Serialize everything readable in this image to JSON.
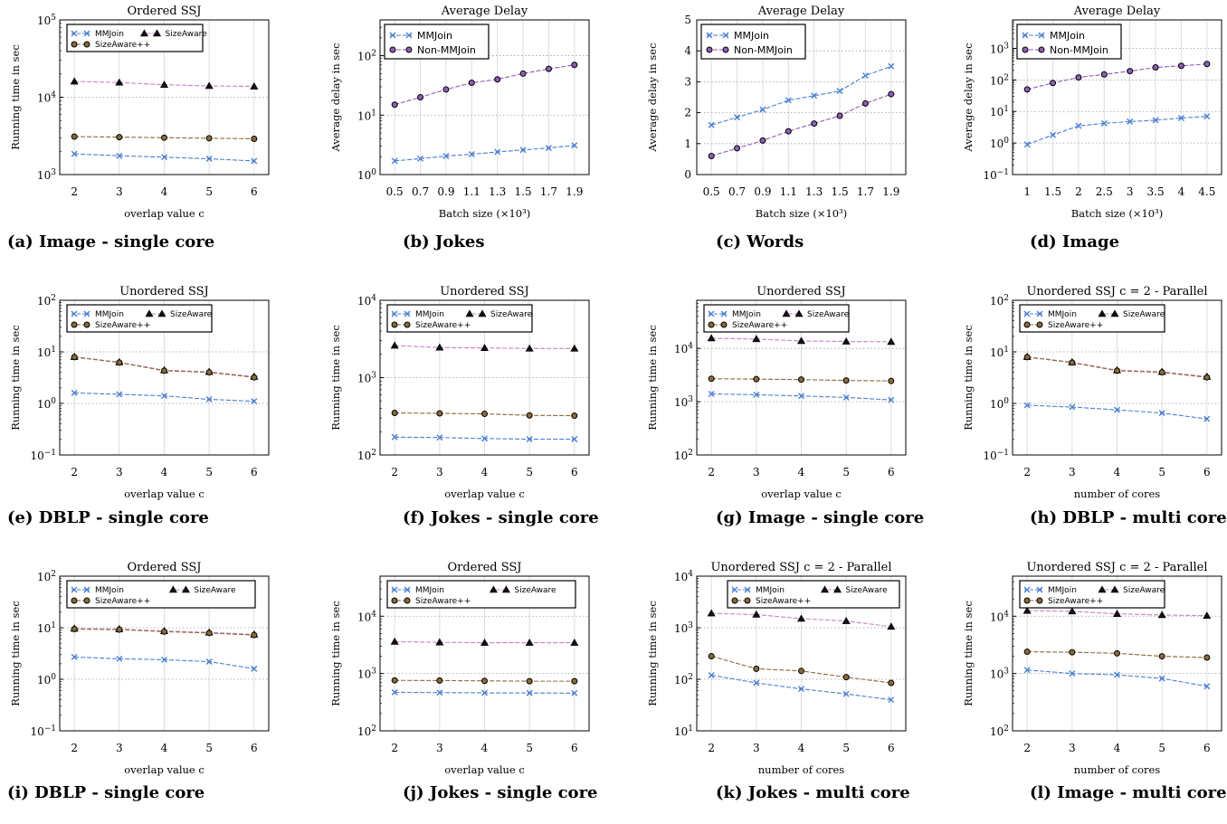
{
  "colors": {
    "mmjoin": "#4a7fd0",
    "sizeaware": "#cc7fcc",
    "sizeawarepp": "#8a6a3a",
    "nonmmjoin": "#8e5fb4"
  },
  "chart_data": [
    {
      "type": "line",
      "title": "Ordered SSJ",
      "xlabel": "overlap value c",
      "ylabel": "Running time in sec",
      "yscale": "log",
      "ylim": [
        1000,
        100000
      ],
      "x": [
        2,
        3,
        4,
        5,
        6
      ],
      "xticks": [
        "2",
        "3",
        "4",
        "5",
        "6"
      ],
      "yticks": [
        {
          "v": 1000,
          "m": "10",
          "e": "3"
        },
        {
          "v": 10000,
          "m": "10",
          "e": "4"
        },
        {
          "v": 100000,
          "m": "10",
          "e": "5"
        }
      ],
      "legend": "grid3",
      "legend_entries": [
        "MMJoin",
        "SizeAware",
        "SizeAware++"
      ],
      "series": [
        {
          "name": "MMJoin",
          "values": [
            1850,
            1750,
            1680,
            1600,
            1500
          ]
        },
        {
          "name": "SizeAware",
          "values": [
            16000,
            15500,
            14500,
            14000,
            13800
          ]
        },
        {
          "name": "SizeAware++",
          "values": [
            3100,
            3050,
            3000,
            2950,
            2900
          ]
        }
      ],
      "caption": "(a) Image - single core"
    },
    {
      "type": "line",
      "title": "Average Delay",
      "xlabel": "Batch size (×10³)",
      "ylabel": "Average delay in sec",
      "yscale": "log",
      "ylim": [
        1,
        400
      ],
      "x": [
        0.5,
        0.7,
        0.9,
        1.1,
        1.3,
        1.5,
        1.7,
        1.9
      ],
      "xticks": [
        "0.5",
        "0.7",
        "0.9",
        "1.1",
        "1.3",
        "1.5",
        "1.7",
        "1.9"
      ],
      "yticks": [
        {
          "v": 1,
          "m": "10",
          "e": "0"
        },
        {
          "v": 10,
          "m": "10",
          "e": "1"
        },
        {
          "v": 100,
          "m": "10",
          "e": "2"
        }
      ],
      "legend": "stack",
      "legend_entries": [
        "MMJoin",
        "Non-MMJoin"
      ],
      "series": [
        {
          "name": "MMJoin",
          "values": [
            1.7,
            1.85,
            2.05,
            2.2,
            2.4,
            2.6,
            2.8,
            3.1
          ]
        },
        {
          "name": "Non-MMJoin",
          "values": [
            15,
            20,
            27,
            35,
            40,
            50,
            60,
            70
          ]
        }
      ],
      "caption": "(b) Jokes"
    },
    {
      "type": "line",
      "title": "Average Delay",
      "xlabel": "Batch size (×10³)",
      "ylabel": "Average delay in sec",
      "yscale": "linear",
      "ylim": [
        0,
        5
      ],
      "x": [
        0.5,
        0.7,
        0.9,
        1.1,
        1.3,
        1.5,
        1.7,
        1.9
      ],
      "xticks": [
        "0.5",
        "0.7",
        "0.9",
        "1.1",
        "1.3",
        "1.5",
        "1.7",
        "1.9"
      ],
      "yticks": [
        {
          "v": 0,
          "t": "0"
        },
        {
          "v": 1,
          "t": "1"
        },
        {
          "v": 2,
          "t": "2"
        },
        {
          "v": 3,
          "t": "3"
        },
        {
          "v": 4,
          "t": "4"
        },
        {
          "v": 5,
          "t": "5"
        }
      ],
      "legend": "stack",
      "legend_entries": [
        "MMJoin",
        "Non-MMJoin"
      ],
      "series": [
        {
          "name": "MMJoin",
          "values": [
            1.6,
            1.85,
            2.1,
            2.4,
            2.55,
            2.7,
            3.2,
            3.5
          ]
        },
        {
          "name": "Non-MMJoin",
          "values": [
            0.6,
            0.85,
            1.1,
            1.4,
            1.65,
            1.9,
            2.3,
            2.6
          ]
        }
      ],
      "caption": "(c) Words"
    },
    {
      "type": "line",
      "title": "Average Delay",
      "xlabel": "Batch size (×10³)",
      "ylabel": "Average delay in sec",
      "yscale": "log",
      "ylim": [
        0.1,
        8000
      ],
      "x": [
        1,
        1.5,
        2,
        2.5,
        3,
        3.5,
        4,
        4.5
      ],
      "xticks": [
        "1",
        "1.5",
        "2",
        "2.5",
        "3",
        "3.5",
        "4",
        "4.5"
      ],
      "yticks": [
        {
          "v": 0.1,
          "m": "10",
          "e": "−1"
        },
        {
          "v": 1,
          "m": "10",
          "e": "0"
        },
        {
          "v": 10,
          "m": "10",
          "e": "1"
        },
        {
          "v": 100,
          "m": "10",
          "e": "2"
        },
        {
          "v": 1000,
          "m": "10",
          "e": "3"
        }
      ],
      "legend": "stack",
      "legend_entries": [
        "MMJoin",
        "Non-MMJoin"
      ],
      "series": [
        {
          "name": "MMJoin",
          "values": [
            0.9,
            1.8,
            3.5,
            4.2,
            4.8,
            5.3,
            6.2,
            7
          ]
        },
        {
          "name": "Non-MMJoin",
          "values": [
            50,
            80,
            120,
            150,
            190,
            250,
            280,
            320
          ]
        }
      ],
      "caption": "(d) Image"
    },
    {
      "type": "line",
      "title": "Unordered SSJ",
      "xlabel": "overlap value c",
      "ylabel": "Running time in sec",
      "yscale": "log",
      "ylim": [
        0.1,
        100
      ],
      "x": [
        2,
        3,
        4,
        5,
        6
      ],
      "xticks": [
        "2",
        "3",
        "4",
        "5",
        "6"
      ],
      "yticks": [
        {
          "v": 0.1,
          "m": "10",
          "e": "−1"
        },
        {
          "v": 1,
          "m": "10",
          "e": "0"
        },
        {
          "v": 10,
          "m": "10",
          "e": "1"
        },
        {
          "v": 100,
          "m": "10",
          "e": "2"
        }
      ],
      "legend": "grid3",
      "legend_entries": [
        "MMJoin",
        "SizeAware",
        "SizeAware++"
      ],
      "series": [
        {
          "name": "MMJoin",
          "values": [
            1.6,
            1.5,
            1.4,
            1.2,
            1.1
          ]
        },
        {
          "name": "SizeAware",
          "values": [
            8,
            6.3,
            4.4,
            4.1,
            3.3
          ]
        },
        {
          "name": "SizeAware++",
          "values": [
            7.9,
            6.2,
            4.3,
            4,
            3.2
          ]
        }
      ],
      "caption": "(e) DBLP - single core"
    },
    {
      "type": "line",
      "title": "Unordered SSJ",
      "xlabel": "overlap value c",
      "ylabel": "Running time in sec",
      "yscale": "log",
      "ylim": [
        100,
        10000
      ],
      "x": [
        2,
        3,
        4,
        5,
        6
      ],
      "xticks": [
        "2",
        "3",
        "4",
        "5",
        "6"
      ],
      "yticks": [
        {
          "v": 100,
          "m": "10",
          "e": "2"
        },
        {
          "v": 1000,
          "m": "10",
          "e": "3"
        },
        {
          "v": 10000,
          "m": "10",
          "e": "4"
        }
      ],
      "legend": "grid3",
      "legend_entries": [
        "MMJoin",
        "SizeAware",
        "SizeAware++"
      ],
      "series": [
        {
          "name": "MMJoin",
          "values": [
            170,
            168,
            163,
            160,
            160
          ]
        },
        {
          "name": "SizeAware",
          "values": [
            2600,
            2450,
            2420,
            2380,
            2380
          ]
        },
        {
          "name": "SizeAware++",
          "values": [
            350,
            345,
            340,
            325,
            322
          ]
        }
      ],
      "caption": "(f) Jokes - single core"
    },
    {
      "type": "line",
      "title": "Unordered SSJ",
      "xlabel": "overlap value c",
      "ylabel": "Running time in sec",
      "yscale": "log",
      "ylim": [
        100,
        80000
      ],
      "x": [
        2,
        3,
        4,
        5,
        6
      ],
      "xticks": [
        "2",
        "3",
        "4",
        "5",
        "6"
      ],
      "yticks": [
        {
          "v": 100,
          "m": "10",
          "e": "2"
        },
        {
          "v": 1000,
          "m": "10",
          "e": "3"
        },
        {
          "v": 10000,
          "m": "10",
          "e": "4"
        }
      ],
      "legend": "grid3",
      "legend_entries": [
        "MMJoin",
        "SizeAware",
        "SizeAware++"
      ],
      "series": [
        {
          "name": "MMJoin",
          "values": [
            1400,
            1350,
            1280,
            1200,
            1080
          ]
        },
        {
          "name": "SizeAware",
          "values": [
            15500,
            15000,
            13800,
            13500,
            13300
          ]
        },
        {
          "name": "SizeAware++",
          "values": [
            2700,
            2650,
            2600,
            2500,
            2450
          ]
        }
      ],
      "caption": "(g) Image - single core"
    },
    {
      "type": "line",
      "title": "Unordered SSJ c = 2 - Parallel",
      "xlabel": "number of cores",
      "ylabel": "Running time in sec",
      "yscale": "log",
      "ylim": [
        0.1,
        100
      ],
      "x": [
        2,
        3,
        4,
        5,
        6
      ],
      "xticks": [
        "2",
        "3",
        "4",
        "5",
        "6"
      ],
      "yticks": [
        {
          "v": 0.1,
          "m": "10",
          "e": "−1"
        },
        {
          "v": 1,
          "m": "10",
          "e": "0"
        },
        {
          "v": 10,
          "m": "10",
          "e": "1"
        },
        {
          "v": 100,
          "m": "10",
          "e": "2"
        }
      ],
      "legend": "grid3",
      "legend_entries": [
        "MMJoin",
        "SizeAware",
        "SizeAware++"
      ],
      "series": [
        {
          "name": "MMJoin",
          "values": [
            0.92,
            0.85,
            0.75,
            0.65,
            0.5
          ]
        },
        {
          "name": "SizeAware",
          "values": [
            8,
            6.3,
            4.4,
            4.1,
            3.3
          ]
        },
        {
          "name": "SizeAware++",
          "values": [
            7.9,
            6.2,
            4.3,
            4,
            3.2
          ]
        }
      ],
      "caption": "(h) DBLP - multi core"
    },
    {
      "type": "line",
      "title": "Ordered SSJ",
      "xlabel": "overlap value c",
      "ylabel": "Running time in sec",
      "yscale": "log",
      "ylim": [
        0.1,
        100
      ],
      "x": [
        2,
        3,
        4,
        5,
        6
      ],
      "xticks": [
        "2",
        "3",
        "4",
        "5",
        "6"
      ],
      "yticks": [
        {
          "v": 0.1,
          "m": "10",
          "e": "−1"
        },
        {
          "v": 1,
          "m": "10",
          "e": "0"
        },
        {
          "v": 10,
          "m": "10",
          "e": "1"
        },
        {
          "v": 100,
          "m": "10",
          "e": "2"
        }
      ],
      "legend": "grid3",
      "legend_entries": [
        "MMJoin",
        "SizeAware",
        "SizeAware++"
      ],
      "series": [
        {
          "name": "MMJoin",
          "values": [
            2.7,
            2.5,
            2.4,
            2.2,
            1.6
          ]
        },
        {
          "name": "SizeAware",
          "values": [
            9.6,
            9.4,
            8.6,
            8.1,
            7.4
          ]
        },
        {
          "name": "SizeAware++",
          "values": [
            9.4,
            9.2,
            8.4,
            7.9,
            7.2
          ]
        }
      ],
      "caption": "(i) DBLP - single core"
    },
    {
      "type": "line",
      "title": "Ordered SSJ",
      "xlabel": "overlap value c",
      "ylabel": "Running time in sec",
      "yscale": "log",
      "ylim": [
        100,
        50000
      ],
      "x": [
        2,
        3,
        4,
        5,
        6
      ],
      "xticks": [
        "2",
        "3",
        "4",
        "5",
        "6"
      ],
      "yticks": [
        {
          "v": 100,
          "m": "10",
          "e": "2"
        },
        {
          "v": 1000,
          "m": "10",
          "e": "3"
        },
        {
          "v": 10000,
          "m": "10",
          "e": "4"
        }
      ],
      "legend": "grid3",
      "legend_entries": [
        "MMJoin",
        "SizeAware",
        "SizeAware++"
      ],
      "series": [
        {
          "name": "MMJoin",
          "values": [
            470,
            465,
            460,
            458,
            455
          ]
        },
        {
          "name": "SizeAware",
          "values": [
            3600,
            3500,
            3450,
            3450,
            3450
          ]
        },
        {
          "name": "SizeAware++",
          "values": [
            760,
            755,
            745,
            735,
            735
          ]
        }
      ],
      "caption": "(j) Jokes - single core"
    },
    {
      "type": "line",
      "title": "Unordered SSJ c = 2 - Parallel",
      "xlabel": "number of cores",
      "ylabel": "Running time in sec",
      "yscale": "log",
      "ylim": [
        10,
        10000
      ],
      "x": [
        2,
        3,
        4,
        5,
        6
      ],
      "xticks": [
        "2",
        "3",
        "4",
        "5",
        "6"
      ],
      "yticks": [
        {
          "v": 10,
          "m": "10",
          "e": "1"
        },
        {
          "v": 100,
          "m": "10",
          "e": "2"
        },
        {
          "v": 1000,
          "m": "10",
          "e": "3"
        },
        {
          "v": 10000,
          "m": "10",
          "e": "4"
        }
      ],
      "legend": "grid3",
      "legend_entries": [
        "MMJoin",
        "SizeAware",
        "SizeAware++"
      ],
      "series": [
        {
          "name": "MMJoin",
          "values": [
            120,
            85,
            65,
            52,
            40
          ]
        },
        {
          "name": "SizeAware",
          "values": [
            1900,
            1800,
            1500,
            1350,
            1050
          ]
        },
        {
          "name": "SizeAware++",
          "values": [
            280,
            160,
            145,
            110,
            85
          ]
        }
      ],
      "caption": "(k) Jokes - multi core"
    },
    {
      "type": "line",
      "title": "Unordered SSJ c = 2 - Parallel",
      "xlabel": "number of cores",
      "ylabel": "Running time in sec",
      "yscale": "log",
      "ylim": [
        100,
        50000
      ],
      "x": [
        2,
        3,
        4,
        5,
        6
      ],
      "xticks": [
        "2",
        "3",
        "4",
        "5",
        "6"
      ],
      "yticks": [
        {
          "v": 100,
          "m": "10",
          "e": "2"
        },
        {
          "v": 1000,
          "m": "10",
          "e": "3"
        },
        {
          "v": 10000,
          "m": "10",
          "e": "4"
        }
      ],
      "legend": "grid3",
      "legend_entries": [
        "MMJoin",
        "SizeAware",
        "SizeAware++"
      ],
      "series": [
        {
          "name": "MMJoin",
          "values": [
            1150,
            1000,
            950,
            820,
            600
          ]
        },
        {
          "name": "SizeAware",
          "values": [
            12500,
            12200,
            11000,
            10500,
            10200
          ]
        },
        {
          "name": "SizeAware++",
          "values": [
            2400,
            2350,
            2250,
            2000,
            1900
          ]
        }
      ],
      "caption": "(l) Image - multi core"
    }
  ]
}
